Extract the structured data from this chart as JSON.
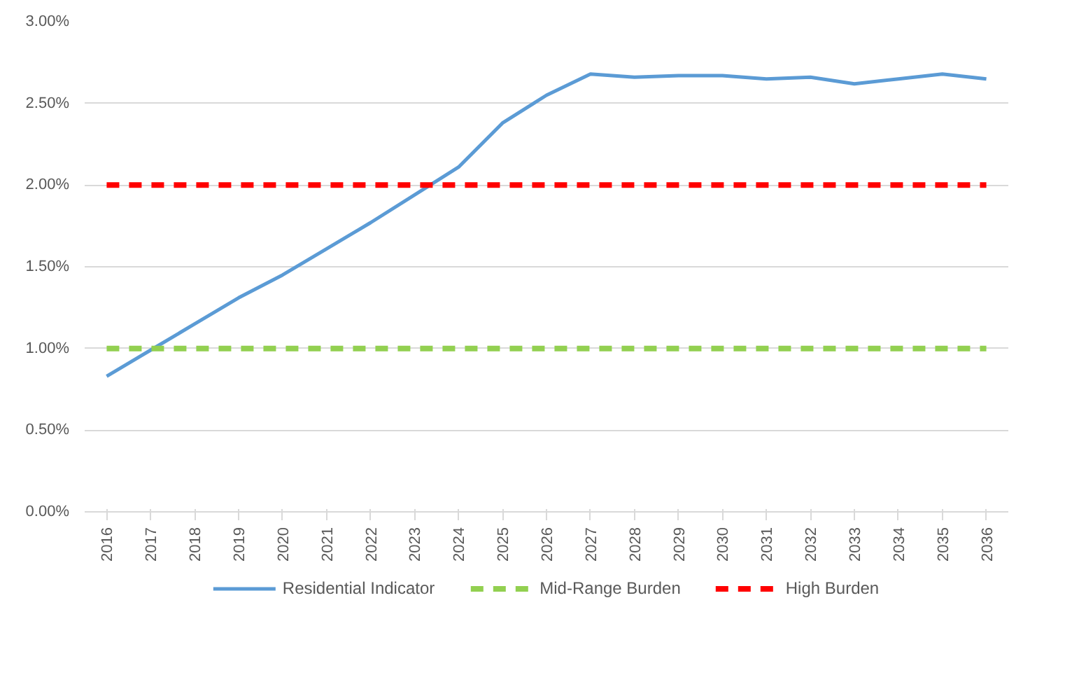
{
  "chart_data": {
    "type": "line",
    "categories": [
      "2016",
      "2017",
      "2018",
      "2019",
      "2020",
      "2021",
      "2022",
      "2023",
      "2024",
      "2025",
      "2026",
      "2027",
      "2028",
      "2029",
      "2030",
      "2031",
      "2032",
      "2033",
      "2034",
      "2035",
      "2036"
    ],
    "series": [
      {
        "name": "Residential Indicator",
        "color": "#5b9bd5",
        "line_style": "solid",
        "values": [
          0.83,
          0.99,
          1.15,
          1.31,
          1.45,
          1.61,
          1.77,
          1.94,
          2.11,
          2.38,
          2.55,
          2.68,
          2.66,
          2.67,
          2.67,
          2.65,
          2.66,
          2.62,
          2.65,
          2.68,
          2.65
        ]
      },
      {
        "name": "Mid-Range Burden",
        "color": "#92d050",
        "line_style": "dashed",
        "values": [
          1,
          1,
          1,
          1,
          1,
          1,
          1,
          1,
          1,
          1,
          1,
          1,
          1,
          1,
          1,
          1,
          1,
          1,
          1,
          1,
          1
        ]
      },
      {
        "name": "High Burden",
        "color": "#ff0000",
        "line_style": "dashed",
        "values": [
          2,
          2,
          2,
          2,
          2,
          2,
          2,
          2,
          2,
          2,
          2,
          2,
          2,
          2,
          2,
          2,
          2,
          2,
          2,
          2,
          2
        ]
      }
    ],
    "ylim": [
      0,
      3
    ],
    "yticks": [
      {
        "value": 0,
        "label": "0.00%"
      },
      {
        "value": 0.5,
        "label": "0.50%"
      },
      {
        "value": 1,
        "label": "1.00%"
      },
      {
        "value": 1.5,
        "label": "1.50%"
      },
      {
        "value": 2,
        "label": "2.00%"
      },
      {
        "value": 2.5,
        "label": "2.50%"
      },
      {
        "value": 3,
        "label": "3.00%"
      }
    ],
    "grid": "y",
    "legend": "bottom",
    "marker": "none"
  }
}
